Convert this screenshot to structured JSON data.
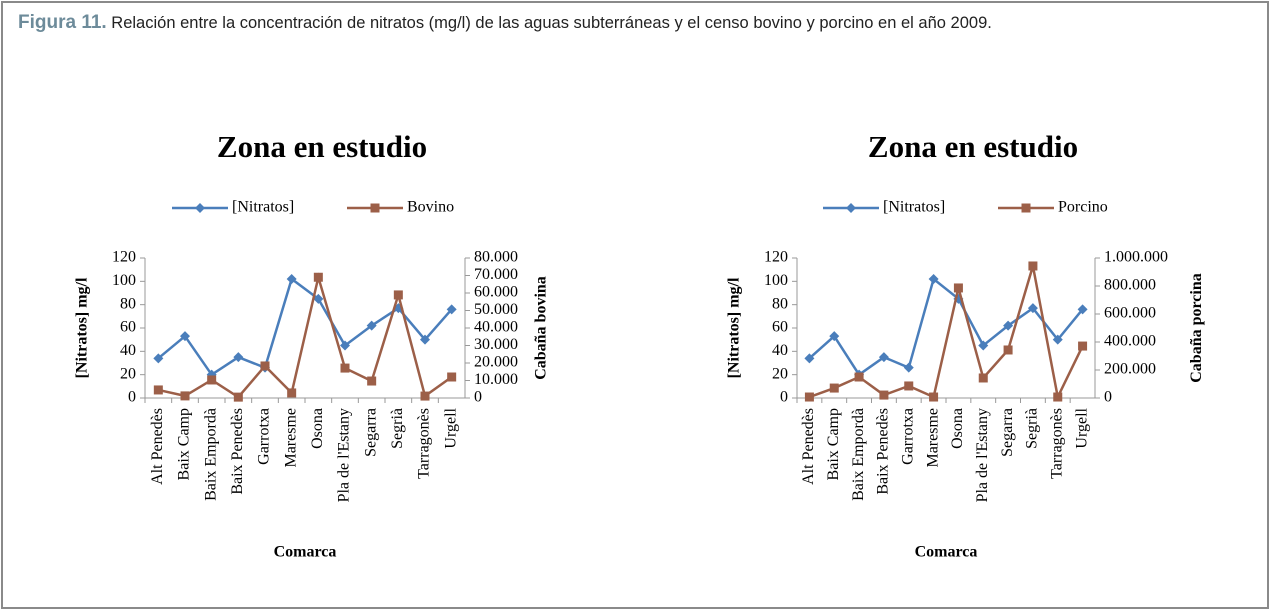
{
  "caption": {
    "label": "Figura 11.",
    "text": "Relación entre la concentración de nitratos (mg/l) de las aguas subterráneas y el censo bovino y porcino en el año 2009."
  },
  "chart_data": [
    {
      "type": "line",
      "title": "Zona en estudio",
      "xlabel": "Comarca",
      "ylabel": "[Nitratos] mg/l",
      "y2label": "Cabaña bovina",
      "categories": [
        "Alt Penedès",
        "Baix Camp",
        "Baix Empordà",
        "Baix Penedès",
        "Garrotxa",
        "Maresme",
        "Osona",
        "Pla de l'Estany",
        "Segarra",
        "Segrià",
        "Tarragonès",
        "Urgell"
      ],
      "series": [
        {
          "name": "[Nitratos]",
          "color": "#4a7ebb",
          "marker": "diamond",
          "values": [
            34,
            53,
            20,
            35,
            26,
            102,
            85,
            45,
            62,
            77,
            50,
            76
          ]
        },
        {
          "name": "Bovino",
          "color": "#9c5f48",
          "marker": "square",
          "axis": "y2",
          "values": [
            4600,
            1200,
            10300,
            500,
            18300,
            2900,
            69000,
            17100,
            9700,
            58900,
            1100,
            12000
          ]
        }
      ],
      "ylim": [
        0,
        120
      ],
      "yticks": [
        0,
        20,
        40,
        60,
        80,
        100,
        120
      ],
      "y2lim": [
        0,
        80000
      ],
      "y2ticks": [
        0,
        {
          "value": 10000,
          "label": "10.000"
        },
        {
          "value": 20000,
          "label": "20.000"
        },
        {
          "value": 30000,
          "label": "30.000"
        },
        {
          "value": 40000,
          "label": "40.000"
        },
        {
          "value": 50000,
          "label": "50.000"
        },
        {
          "value": 60000,
          "label": "60.000"
        },
        {
          "value": 70000,
          "label": "70.000"
        },
        {
          "value": 80000,
          "label": "80.000"
        }
      ],
      "legend": "top",
      "grid": false
    },
    {
      "type": "line",
      "title": "Zona en estudio",
      "xlabel": "Comarca",
      "ylabel": "[Nitratos] mg/l",
      "y2label": "Cabaña porcina",
      "categories": [
        "Alt Penedès",
        "Baix Camp",
        "Baix Empordà",
        "Baix Penedès",
        "Garrotxa",
        "Maresme",
        "Osona",
        "Pla de l'Estany",
        "Segarra",
        "Segrià",
        "Tarragonès",
        "Urgell"
      ],
      "series": [
        {
          "name": "[Nitratos]",
          "color": "#4a7ebb",
          "marker": "diamond",
          "values": [
            34,
            53,
            20,
            35,
            26,
            102,
            85,
            45,
            62,
            77,
            50,
            76
          ]
        },
        {
          "name": "Porcino",
          "color": "#9c5f48",
          "marker": "square",
          "axis": "y2",
          "values": [
            7000,
            71000,
            150000,
            21000,
            86000,
            7000,
            786000,
            143000,
            343000,
            943000,
            7000,
            371000
          ]
        }
      ],
      "ylim": [
        0,
        120
      ],
      "yticks": [
        0,
        20,
        40,
        60,
        80,
        100,
        120
      ],
      "y2lim": [
        0,
        1000000
      ],
      "y2ticks": [
        0,
        {
          "value": 200000,
          "label": "200.000"
        },
        {
          "value": 400000,
          "label": "400.000"
        },
        {
          "value": 600000,
          "label": "600.000"
        },
        {
          "value": 800000,
          "label": "800.000"
        },
        {
          "value": 1000000,
          "label": "1.000.000"
        }
      ],
      "legend": "top",
      "grid": false
    }
  ]
}
